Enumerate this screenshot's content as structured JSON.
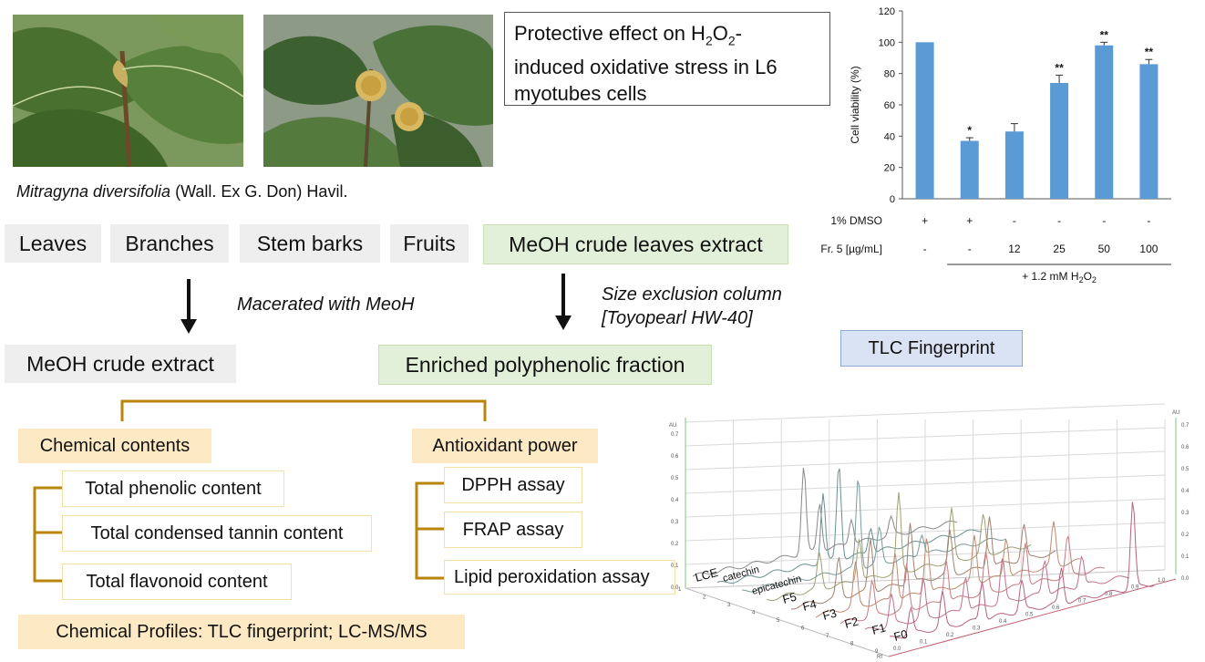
{
  "species": {
    "italic": "Mitragyna diversifolia",
    "rest": " (Wall. Ex G. Don) Havil."
  },
  "parts": [
    "Leaves",
    "Branches",
    "Stem barks",
    "Fruits"
  ],
  "left_flow": {
    "macerate_label": "Macerated with MeoH",
    "crude_extract": "MeOH crude extract"
  },
  "right_flow": {
    "leaves_extract": "MeOH crude leaves extract",
    "size_exclusion_line1": "Size exclusion column",
    "size_exclusion_line2": "[Toyopearl HW-40]",
    "enriched_fraction": "Enriched polyphenolic fraction"
  },
  "branches": {
    "chemical_contents": "Chemical contents",
    "chemical_items": [
      "Total phenolic content",
      "Total condensed tannin content",
      "Total flavonoid content"
    ],
    "antioxidant_power": "Antioxidant power",
    "antioxidant_items": [
      "DPPH assay",
      "FRAP assay",
      "Lipid peroxidation assay"
    ],
    "profiles": "Chemical Profiles: TLC fingerprint; LC-MS/MS"
  },
  "protective_title": {
    "line1_pre": "Protective effect on H",
    "sub1": "2",
    "mid": "O",
    "sub2": "2",
    "line1_post": "-",
    "line2": "induced oxidative stress in L6",
    "line3": "myotubes cells"
  },
  "tlc_title": "TLC Fingerprint",
  "colors": {
    "grey_box": "#eeeeee",
    "green_box": "#e2efd9",
    "tan_box": "#fde9c3",
    "bracket": "#b8860b",
    "bar": "#5b9bd5",
    "title_box_bg": "#dae3f3"
  },
  "chart_data": {
    "type": "bar",
    "ylabel": "Cell viability (%)",
    "ylim": [
      0,
      120
    ],
    "yticks": [
      0,
      20,
      40,
      60,
      80,
      100,
      120
    ],
    "values": [
      100,
      37,
      43,
      74,
      98,
      86
    ],
    "errors": [
      0,
      2,
      5,
      5,
      2,
      3
    ],
    "significance": [
      "",
      "*",
      "",
      "**",
      "**",
      "**"
    ],
    "row1_label": "1% DMSO",
    "row1": [
      "+",
      "+",
      "-",
      "-",
      "-",
      "-"
    ],
    "row2_label": "Fr. 5 [µg/mL]",
    "row2": [
      "-",
      "-",
      "12",
      "25",
      "50",
      "100"
    ],
    "treatment_pre": "+ 1.2 mM H",
    "treatment_sub1": "2",
    "treatment_mid": "O",
    "treatment_sub2": "2"
  },
  "tlc_plot": {
    "au_label": "AU",
    "au_ticks": [
      "0.7",
      "0.6",
      "0.5",
      "0.4",
      "0.3",
      "0.2",
      "0.1",
      "0.0"
    ],
    "rf_ticks": [
      "0.0",
      "0.1",
      "0.2",
      "0.3",
      "0.4",
      "0.5",
      "0.6",
      "0.7",
      "0.8",
      "0.9",
      "1.0"
    ],
    "track_numbers": [
      "1",
      "2",
      "3",
      "4",
      "5",
      "6",
      "7",
      "8",
      "9"
    ],
    "samples": [
      "LCE",
      "catechin",
      "epicatechin",
      "F5",
      "F4",
      "F3",
      "F2",
      "F1",
      "F0"
    ],
    "rf_label": "Rf"
  }
}
